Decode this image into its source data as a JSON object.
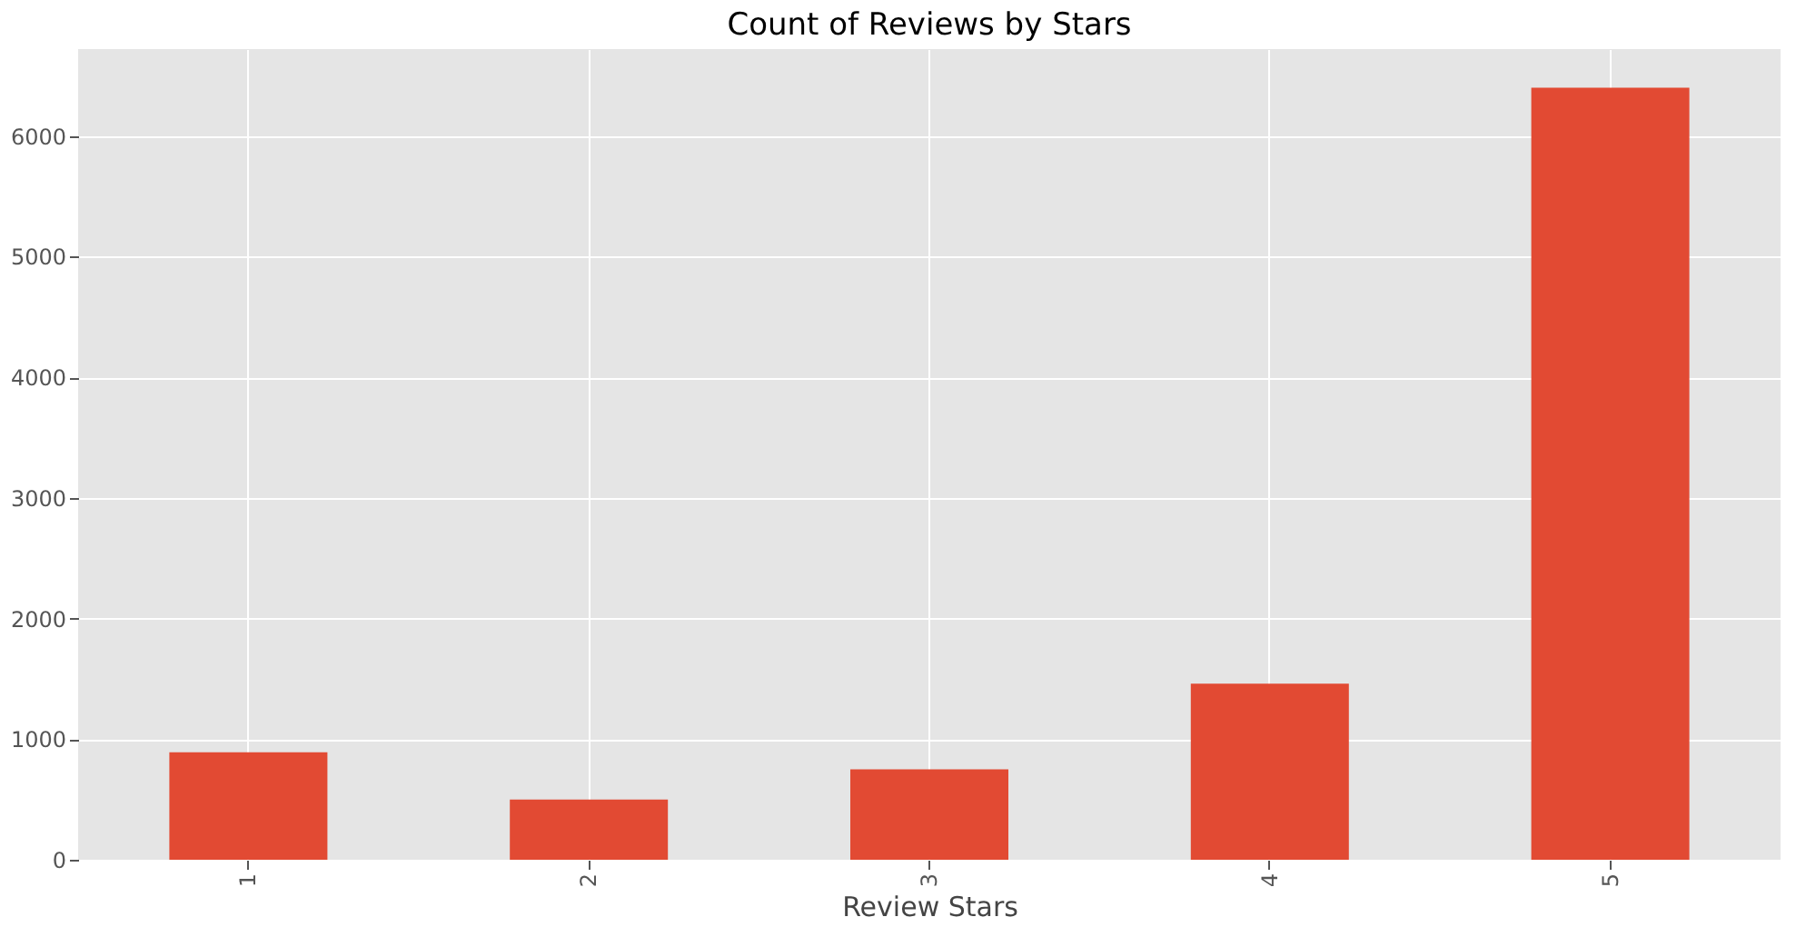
{
  "chart_data": {
    "type": "bar",
    "title": "Count of Reviews by Stars",
    "xlabel": "Review Stars",
    "categories": [
      "1",
      "2",
      "3",
      "4",
      "5"
    ],
    "values": [
      890,
      500,
      750,
      1460,
      6400
    ],
    "color": "#e24a33",
    "ylim": [
      0,
      6720
    ],
    "yticks": [
      0,
      1000,
      2000,
      3000,
      4000,
      5000,
      6000
    ],
    "grid": true
  }
}
